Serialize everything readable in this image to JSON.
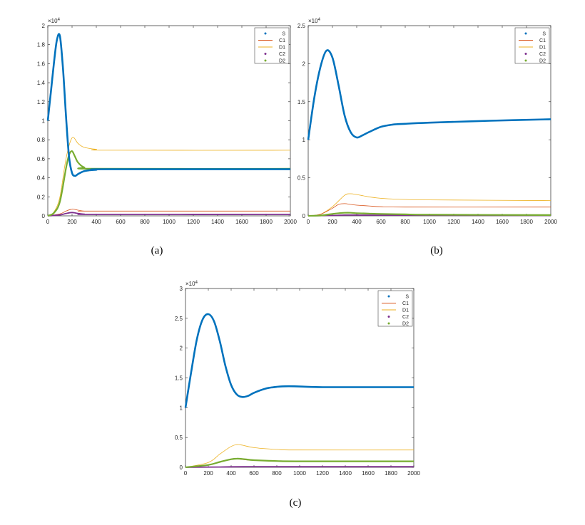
{
  "colors": {
    "S": "#0072BD",
    "C1": "#D95319",
    "D1": "#EDB120",
    "C2": "#7E2F8E",
    "D2": "#77AC30"
  },
  "chart_data": [
    {
      "type": "line",
      "caption": "(a)",
      "exponent_label": "×10",
      "exponent_power": "4",
      "xlim": [
        0,
        2000
      ],
      "ylim": [
        0,
        2
      ],
      "xticks": [
        "0",
        "200",
        "400",
        "600",
        "800",
        "1000",
        "1200",
        "1400",
        "1600",
        "1800",
        "2000"
      ],
      "yticks": [
        "0",
        "0.2",
        "0.4",
        "0.6",
        "0.8",
        "1",
        "1.2",
        "1.4",
        "1.6",
        "1.8",
        "2"
      ],
      "legend_position": "top-right",
      "series": [
        {
          "name": "S",
          "x": [
            0,
            25,
            50,
            75,
            100,
            125,
            150,
            175,
            200,
            225,
            250,
            300,
            350,
            400,
            500,
            2000
          ],
          "values": [
            1.0,
            1.3,
            1.6,
            1.85,
            1.89,
            1.55,
            1.05,
            0.62,
            0.45,
            0.42,
            0.44,
            0.47,
            0.48,
            0.485,
            0.49,
            0.49
          ]
        },
        {
          "name": "C1",
          "x": [
            0,
            100,
            150,
            200,
            250,
            300,
            400,
            2000
          ],
          "values": [
            0,
            0.02,
            0.05,
            0.07,
            0.06,
            0.05,
            0.05,
            0.05
          ]
        },
        {
          "name": "D1",
          "x": [
            0,
            50,
            100,
            150,
            200,
            250,
            300,
            400,
            500,
            2000
          ],
          "values": [
            0,
            0.04,
            0.2,
            0.6,
            0.82,
            0.76,
            0.72,
            0.7,
            0.69,
            0.69
          ]
        },
        {
          "name": "C2",
          "x": [
            0,
            100,
            150,
            200,
            250,
            300,
            400,
            2000
          ],
          "values": [
            0,
            0.01,
            0.025,
            0.035,
            0.025,
            0.018,
            0.015,
            0.015
          ]
        },
        {
          "name": "D2",
          "x": [
            0,
            50,
            100,
            150,
            175,
            200,
            225,
            250,
            300,
            400,
            2000
          ],
          "values": [
            0,
            0.03,
            0.15,
            0.5,
            0.64,
            0.68,
            0.62,
            0.56,
            0.51,
            0.495,
            0.495
          ]
        }
      ]
    },
    {
      "type": "line",
      "caption": "(b)",
      "exponent_label": "×10",
      "exponent_power": "4",
      "xlim": [
        0,
        2000
      ],
      "ylim": [
        0,
        2.5
      ],
      "xticks": [
        "0",
        "200",
        "400",
        "600",
        "800",
        "1000",
        "1200",
        "1400",
        "1600",
        "1800",
        "2000"
      ],
      "yticks": [
        "0",
        "0.5",
        "1",
        "1.5",
        "2",
        "2.5"
      ],
      "legend_position": "top-right",
      "series": [
        {
          "name": "S",
          "x": [
            0,
            50,
            100,
            150,
            200,
            250,
            300,
            350,
            400,
            450,
            500,
            600,
            700,
            800,
            1000,
            1500,
            2000
          ],
          "values": [
            1.0,
            1.55,
            1.95,
            2.17,
            2.08,
            1.72,
            1.32,
            1.1,
            1.03,
            1.06,
            1.1,
            1.17,
            1.2,
            1.21,
            1.225,
            1.25,
            1.27
          ]
        },
        {
          "name": "C1",
          "x": [
            0,
            100,
            200,
            250,
            300,
            350,
            400,
            500,
            600,
            800,
            2000
          ],
          "values": [
            0,
            0.02,
            0.1,
            0.15,
            0.16,
            0.15,
            0.14,
            0.13,
            0.12,
            0.115,
            0.115
          ]
        },
        {
          "name": "D1",
          "x": [
            0,
            100,
            200,
            300,
            350,
            400,
            500,
            600,
            800,
            1000,
            2000
          ],
          "values": [
            0,
            0.02,
            0.12,
            0.27,
            0.29,
            0.28,
            0.25,
            0.23,
            0.215,
            0.21,
            0.2
          ]
        },
        {
          "name": "C2",
          "x": [
            0,
            200,
            300,
            400,
            600,
            2000
          ],
          "values": [
            0,
            0.005,
            0.01,
            0.01,
            0.008,
            0.006
          ]
        },
        {
          "name": "D2",
          "x": [
            0,
            100,
            200,
            250,
            300,
            350,
            400,
            500,
            600,
            800,
            1000,
            2000
          ],
          "values": [
            0,
            0.005,
            0.025,
            0.035,
            0.04,
            0.04,
            0.035,
            0.03,
            0.025,
            0.02,
            0.015,
            0.01
          ]
        }
      ]
    },
    {
      "type": "line",
      "caption": "(c)",
      "exponent_label": "×10",
      "exponent_power": "4",
      "xlim": [
        0,
        2000
      ],
      "ylim": [
        0,
        3
      ],
      "xticks": [
        "0",
        "200",
        "400",
        "600",
        "800",
        "1000",
        "1200",
        "1400",
        "1600",
        "1800",
        "2000"
      ],
      "yticks": [
        "0",
        "0.5",
        "1",
        "1.5",
        "2",
        "2.5",
        "3"
      ],
      "legend_position": "top-right",
      "series": [
        {
          "name": "S",
          "x": [
            0,
            50,
            100,
            150,
            200,
            250,
            300,
            350,
            400,
            450,
            500,
            550,
            600,
            700,
            800,
            900,
            1000,
            1200,
            1500,
            2000
          ],
          "values": [
            1.0,
            1.6,
            2.15,
            2.48,
            2.57,
            2.45,
            2.12,
            1.7,
            1.38,
            1.22,
            1.18,
            1.2,
            1.25,
            1.32,
            1.35,
            1.36,
            1.355,
            1.345,
            1.345,
            1.345
          ]
        },
        {
          "name": "C1",
          "x": [
            0,
            200,
            300,
            400,
            450,
            500,
            600,
            800,
            1000,
            2000
          ],
          "values": [
            0,
            0.04,
            0.09,
            0.13,
            0.14,
            0.13,
            0.115,
            0.105,
            0.1,
            0.1
          ]
        },
        {
          "name": "D1",
          "x": [
            0,
            200,
            300,
            400,
            450,
            500,
            600,
            800,
            1000,
            2000
          ],
          "values": [
            0,
            0.08,
            0.22,
            0.35,
            0.38,
            0.37,
            0.33,
            0.3,
            0.29,
            0.29
          ]
        },
        {
          "name": "C2",
          "x": [
            0,
            300,
            500,
            800,
            2000
          ],
          "values": [
            0,
            0.005,
            0.01,
            0.01,
            0.01
          ]
        },
        {
          "name": "D2",
          "x": [
            0,
            200,
            300,
            400,
            450,
            500,
            600,
            800,
            1000,
            2000
          ],
          "values": [
            0,
            0.04,
            0.09,
            0.135,
            0.145,
            0.14,
            0.12,
            0.105,
            0.1,
            0.1
          ]
        }
      ]
    }
  ]
}
